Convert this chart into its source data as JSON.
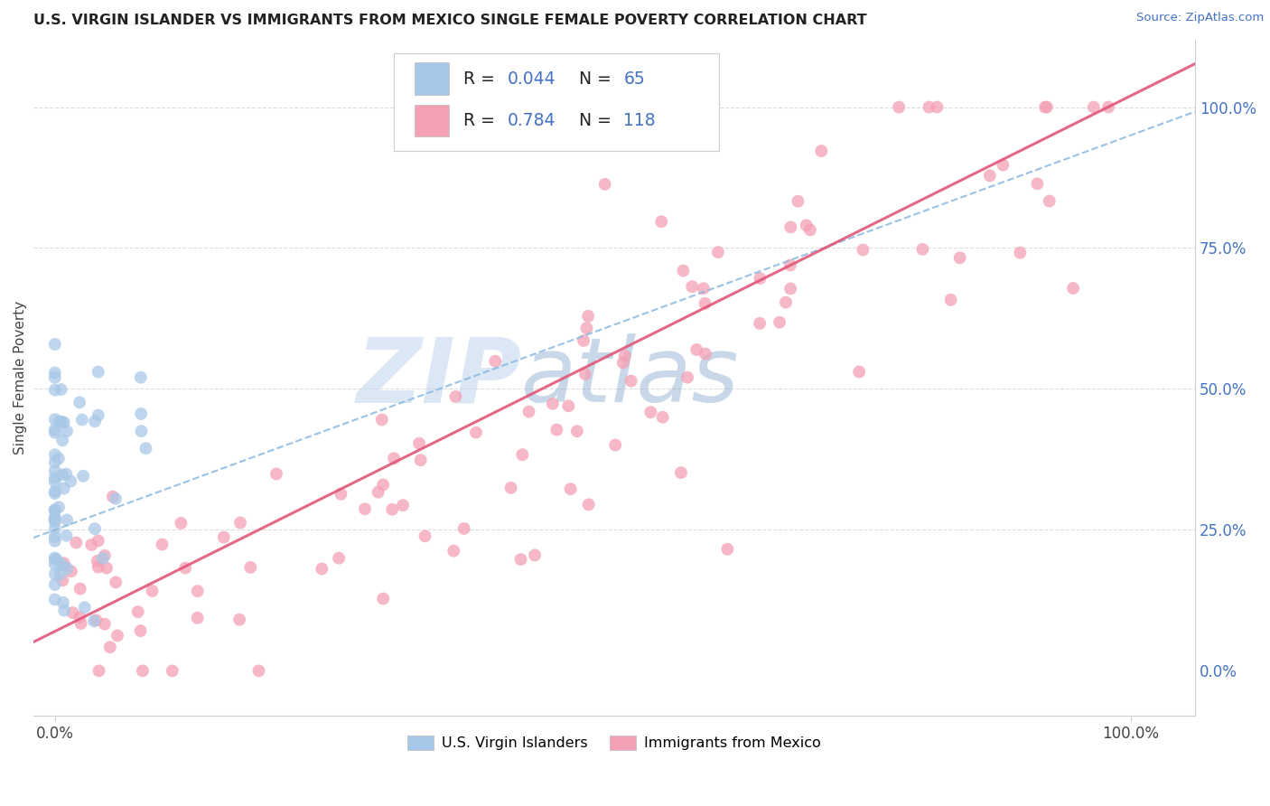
{
  "title": "U.S. VIRGIN ISLANDER VS IMMIGRANTS FROM MEXICO SINGLE FEMALE POVERTY CORRELATION CHART",
  "source": "Source: ZipAtlas.com",
  "ylabel": "Single Female Poverty",
  "legend_labels": [
    "U.S. Virgin Islanders",
    "Immigrants from Mexico"
  ],
  "legend_R": [
    0.044,
    0.784
  ],
  "legend_N": [
    65,
    118
  ],
  "color_vi_scatter": "#a8c8e8",
  "color_mx_scatter": "#f4a0b5",
  "color_vi_line": "#88b8e0",
  "color_mx_line": "#e05878",
  "color_right_axis": "#4472c4",
  "right_ytick_labels": [
    "100.0%",
    "75.0%",
    "50.0%",
    "25.0%",
    "0.0%"
  ],
  "right_ytick_values": [
    1.0,
    0.75,
    0.5,
    0.25,
    0.0
  ],
  "xtick_labels": [
    "0.0%",
    "100.0%"
  ],
  "xtick_values": [
    0.0,
    1.0
  ],
  "xlim": [
    -0.02,
    1.06
  ],
  "ylim": [
    -0.08,
    1.12
  ],
  "watermark_zip": "ZIP",
  "watermark_atlas": "atlas",
  "grid_color": "#dddddd"
}
